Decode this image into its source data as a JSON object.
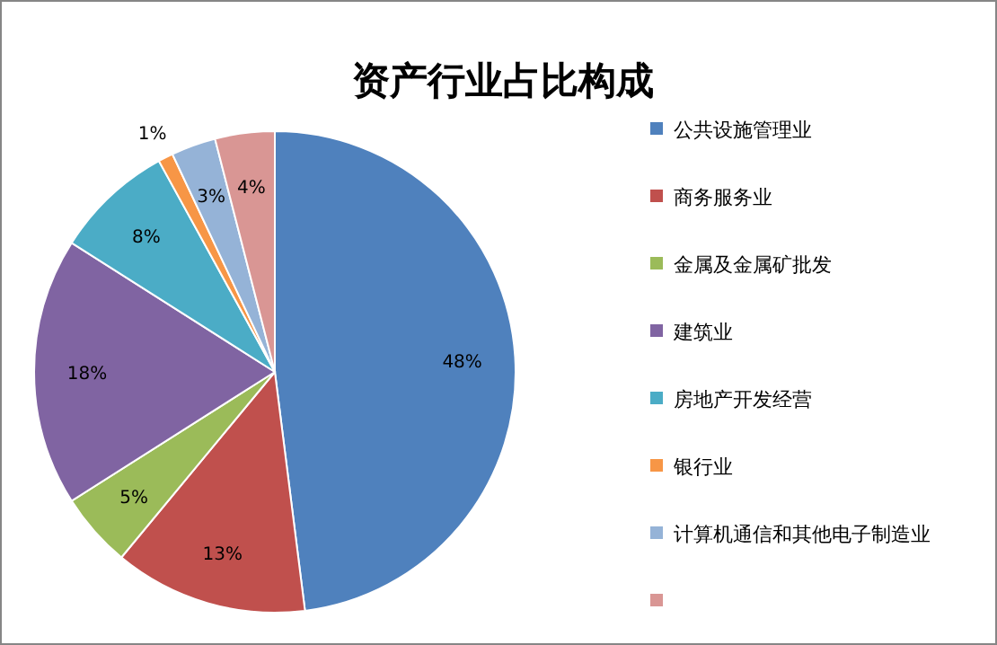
{
  "chart_data": {
    "type": "pie",
    "title": "资产行业占比构成",
    "categories": [
      "公共设施管理业",
      "商务服务业",
      "金属及金属矿批发",
      "建筑业",
      "房地产开发经营",
      "银行业",
      "计算机通信和其他电子制造业",
      null
    ],
    "values": [
      48,
      13,
      5,
      18,
      8,
      1,
      3,
      4
    ],
    "colors": [
      "#4f81bd",
      "#c0504d",
      "#9bbb59",
      "#8064a2",
      "#4bacc6",
      "#f79646",
      "#95b3d7",
      "#d99694"
    ],
    "value_labels": [
      "48%",
      "13%",
      "5%",
      "18%",
      "8%",
      "1%",
      "3%",
      "4%"
    ],
    "legend": "right"
  }
}
